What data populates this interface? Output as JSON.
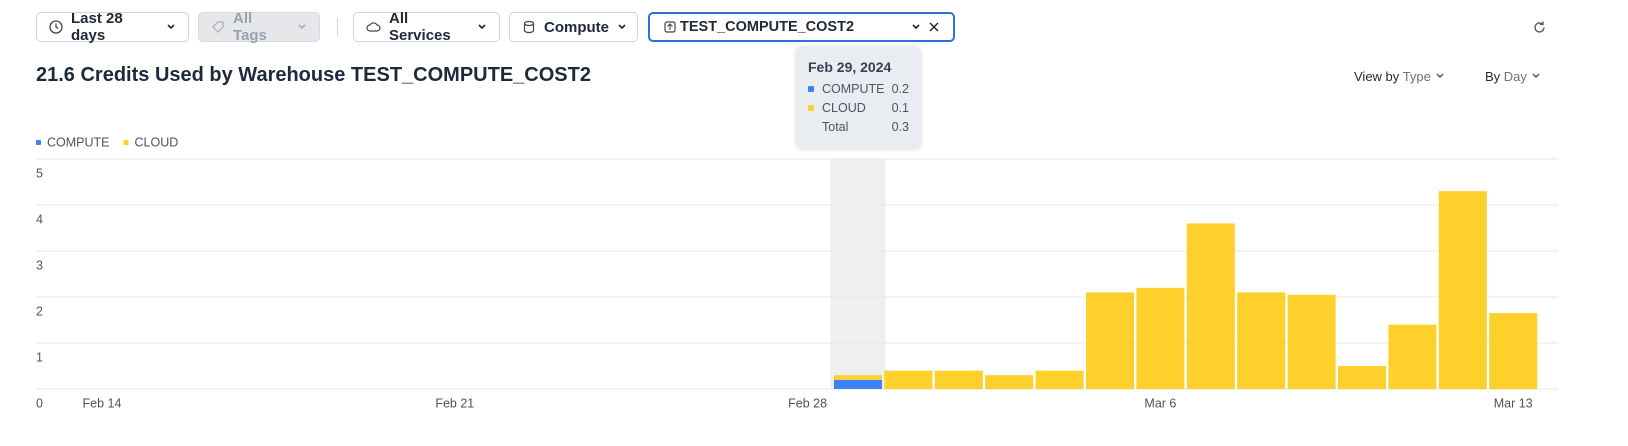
{
  "toolbar": {
    "range": "Last 28 days",
    "tags": "All Tags",
    "services": "All Services",
    "service_type": "Compute",
    "warehouse": "TEST_COMPUTE_COST2"
  },
  "header": {
    "title": "21.6 Credits Used by Warehouse TEST_COMPUTE_COST2",
    "view_by_label": "View by",
    "view_by": "Type",
    "group_by_label": "By",
    "group_by": "Day"
  },
  "tooltip": {
    "title": "Feb 29, 2024",
    "total_label": "Total",
    "total": 0.3
  },
  "chart_data": {
    "type": "stacked-bar",
    "categories": [
      "Feb 14",
      null,
      null,
      null,
      null,
      null,
      null,
      "Feb 21",
      null,
      null,
      null,
      null,
      null,
      null,
      "Feb 28",
      null,
      null,
      null,
      null,
      null,
      null,
      "Mar 6",
      null,
      null,
      null,
      null,
      null,
      null,
      "Mar 13"
    ],
    "series": [
      {
        "name": "COMPUTE",
        "color": "#3b82f6",
        "values": [
          0,
          0,
          0,
          0,
          0,
          0,
          0,
          0,
          0,
          0,
          0,
          0,
          0,
          0,
          0,
          0.2,
          0,
          0,
          0,
          0,
          0,
          0,
          0,
          0,
          0,
          0,
          0,
          0,
          0
        ]
      },
      {
        "name": "CLOUD",
        "color": "#fdd02c",
        "values": [
          0,
          0,
          0,
          0,
          0,
          0,
          0,
          0,
          0,
          0,
          0,
          0,
          0,
          0,
          0,
          0.1,
          0.4,
          0.4,
          0.3,
          0.4,
          2.1,
          2.2,
          3.6,
          2.1,
          2.05,
          0.5,
          1.4,
          4.3,
          1.65
        ]
      }
    ],
    "ylim": [
      0,
      5
    ],
    "yticks": [
      0,
      1,
      2,
      3,
      4,
      5
    ],
    "grid": true,
    "highlight_index": 15
  }
}
